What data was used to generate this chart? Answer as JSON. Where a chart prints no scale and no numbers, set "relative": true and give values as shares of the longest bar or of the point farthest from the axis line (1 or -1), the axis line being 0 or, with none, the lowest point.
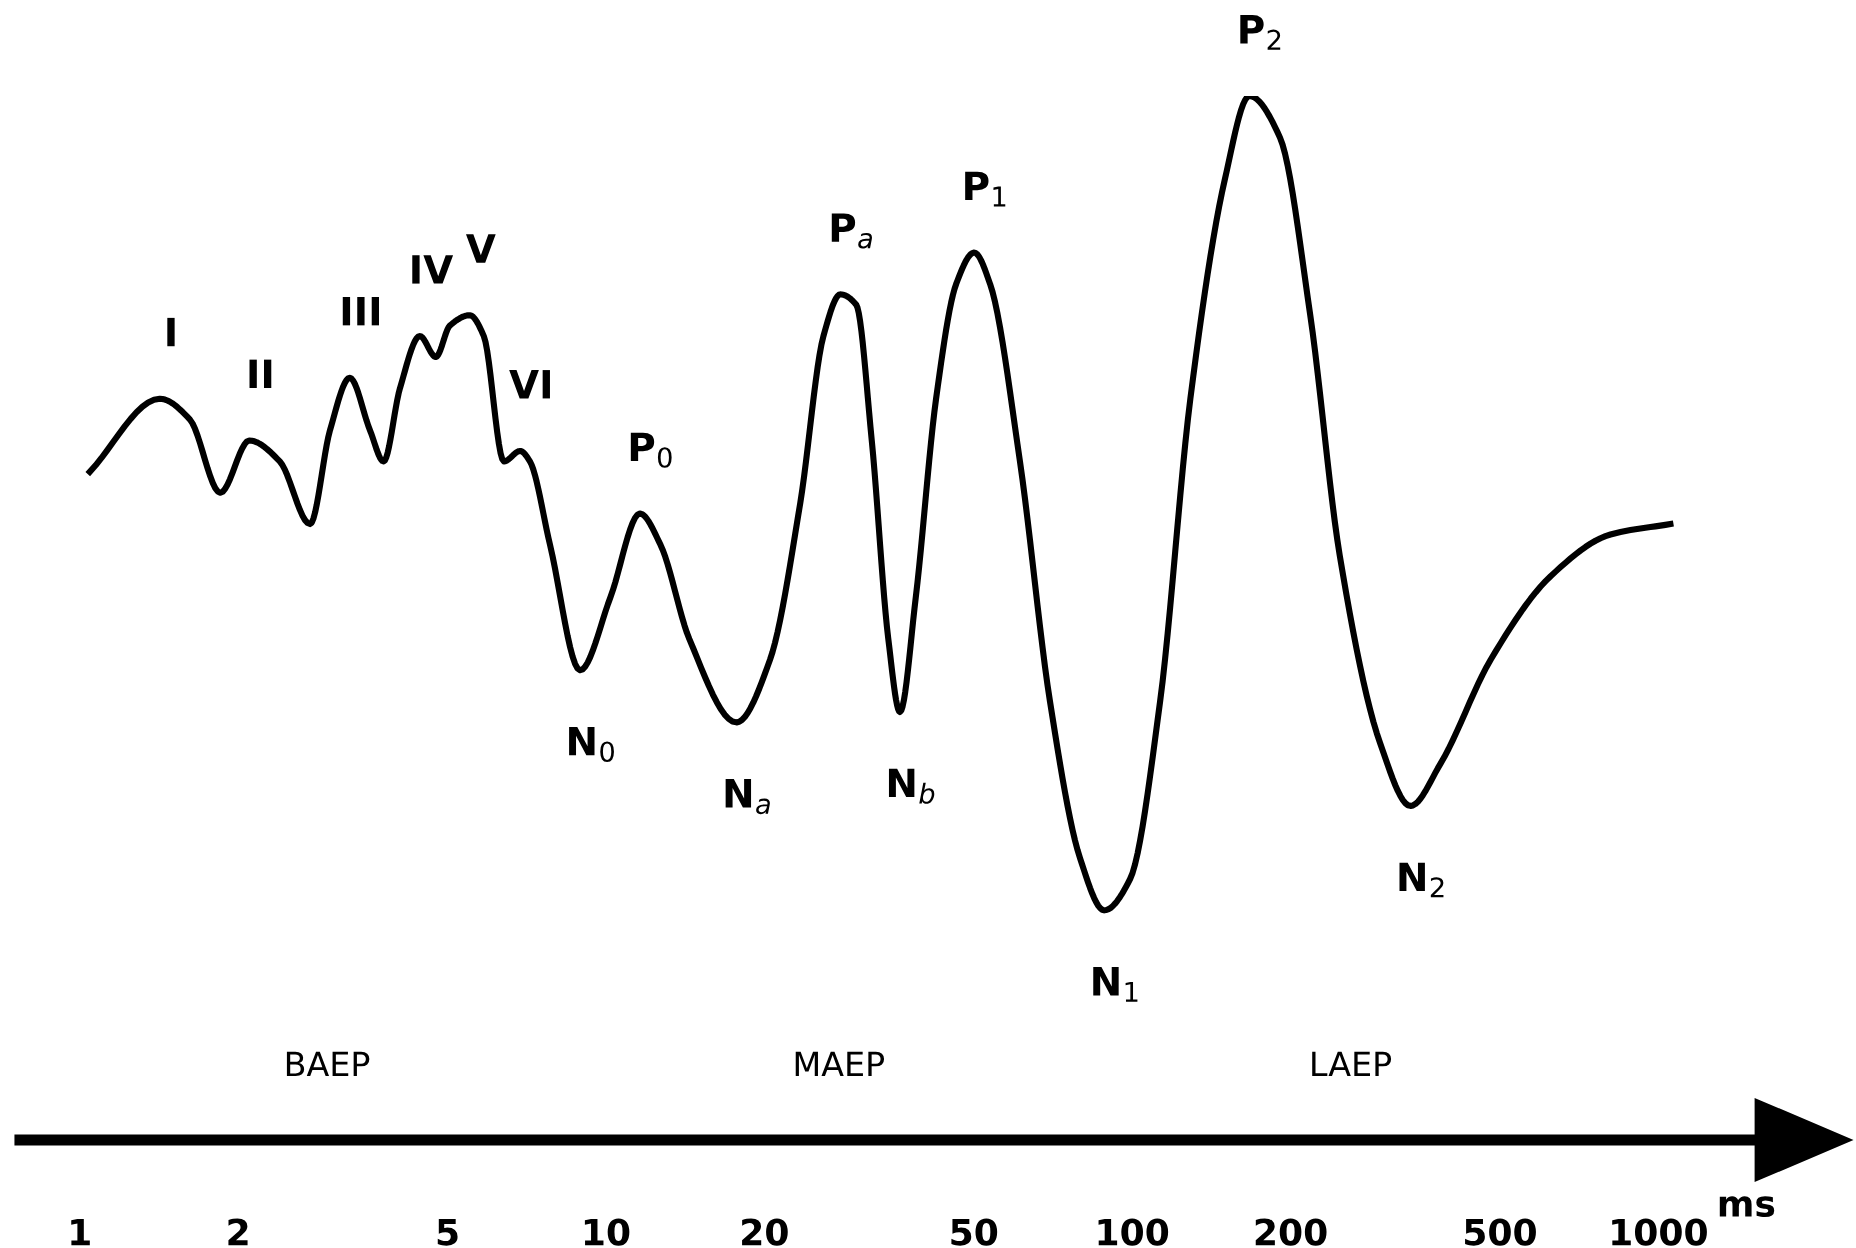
{
  "chart_data": {
    "type": "line",
    "relative": true,
    "log": "x",
    "xlabel": "ms",
    "xlim": [
      0.77,
      1560
    ],
    "xticks": [
      1,
      2,
      5,
      10,
      20,
      50,
      100,
      200,
      500,
      1000
    ],
    "grid": false,
    "legend": false,
    "marker": "none",
    "line_style": "solid",
    "series": [
      {
        "color": "#000000",
        "x": [
          1.045,
          1.42,
          1.62,
          1.85,
          2.1,
          2.4,
          2.74,
          2.99,
          3.26,
          3.56,
          3.78,
          4.06,
          4.43,
          4.75,
          5.05,
          5.51,
          5.86,
          6.4,
          6.87,
          7.17,
          7.83,
          8.93,
          10.2,
          11.6,
          12.7,
          14.4,
          17.7,
          20.5,
          23.4,
          25.9,
          27.9,
          29.9,
          32.0,
          34.4,
          36.2,
          38.8,
          42.4,
          46.3,
          50.1,
          53.7,
          61.2,
          69.8,
          79.6,
          88.5,
          99.1,
          113,
          129,
          150,
          167,
          191,
          218,
          248,
          296,
          338,
          385,
          480,
          624,
          811,
          1054
        ],
        "values": [
          0.64,
          0.71,
          0.69,
          0.62,
          0.67,
          0.65,
          0.59,
          0.68,
          0.73,
          0.68,
          0.65,
          0.72,
          0.77,
          0.75,
          0.78,
          0.79,
          0.77,
          0.65,
          0.66,
          0.65,
          0.57,
          0.45,
          0.52,
          0.6,
          0.57,
          0.48,
          0.4,
          0.46,
          0.61,
          0.77,
          0.81,
          0.8,
          0.67,
          0.48,
          0.41,
          0.52,
          0.71,
          0.82,
          0.85,
          0.82,
          0.65,
          0.42,
          0.27,
          0.22,
          0.25,
          0.42,
          0.71,
          0.92,
          1,
          0.96,
          0.79,
          0.56,
          0.38,
          0.32,
          0.36,
          0.46,
          0.54,
          0.58,
          0.59
        ]
      }
    ],
    "annotations": [
      {
        "text": "I",
        "x": 1.42,
        "y": 0.71
      },
      {
        "text": "II",
        "x": 2.1,
        "y": 0.67
      },
      {
        "text": "III",
        "x": 3.26,
        "y": 0.73
      },
      {
        "text": "IV",
        "x": 4.43,
        "y": 0.77
      },
      {
        "text": "V",
        "x": 5.51,
        "y": 0.79
      },
      {
        "text": "VI",
        "x": 6.87,
        "y": 0.66
      },
      {
        "text": "P$_{0}$",
        "x": 11.6,
        "y": 0.6
      },
      {
        "text": "N$_{0}$",
        "x": 8.93,
        "y": 0.45
      },
      {
        "text": "N$_{a}$",
        "x": 17.7,
        "y": 0.4
      },
      {
        "text": "P$_{a}$",
        "x": 27.9,
        "y": 0.81
      },
      {
        "text": "N$_{b}$",
        "x": 36.2,
        "y": 0.41
      },
      {
        "text": "P$_{1}$",
        "x": 50.1,
        "y": 0.85
      },
      {
        "text": "N$_{1}$",
        "x": 88.5,
        "y": 0.22
      },
      {
        "text": "P$_{2}$",
        "x": 167,
        "y": 1
      },
      {
        "text": "N$_{2}$",
        "x": 338,
        "y": 0.32
      },
      "BAEP",
      "MAEP",
      "LAEP"
    ]
  }
}
